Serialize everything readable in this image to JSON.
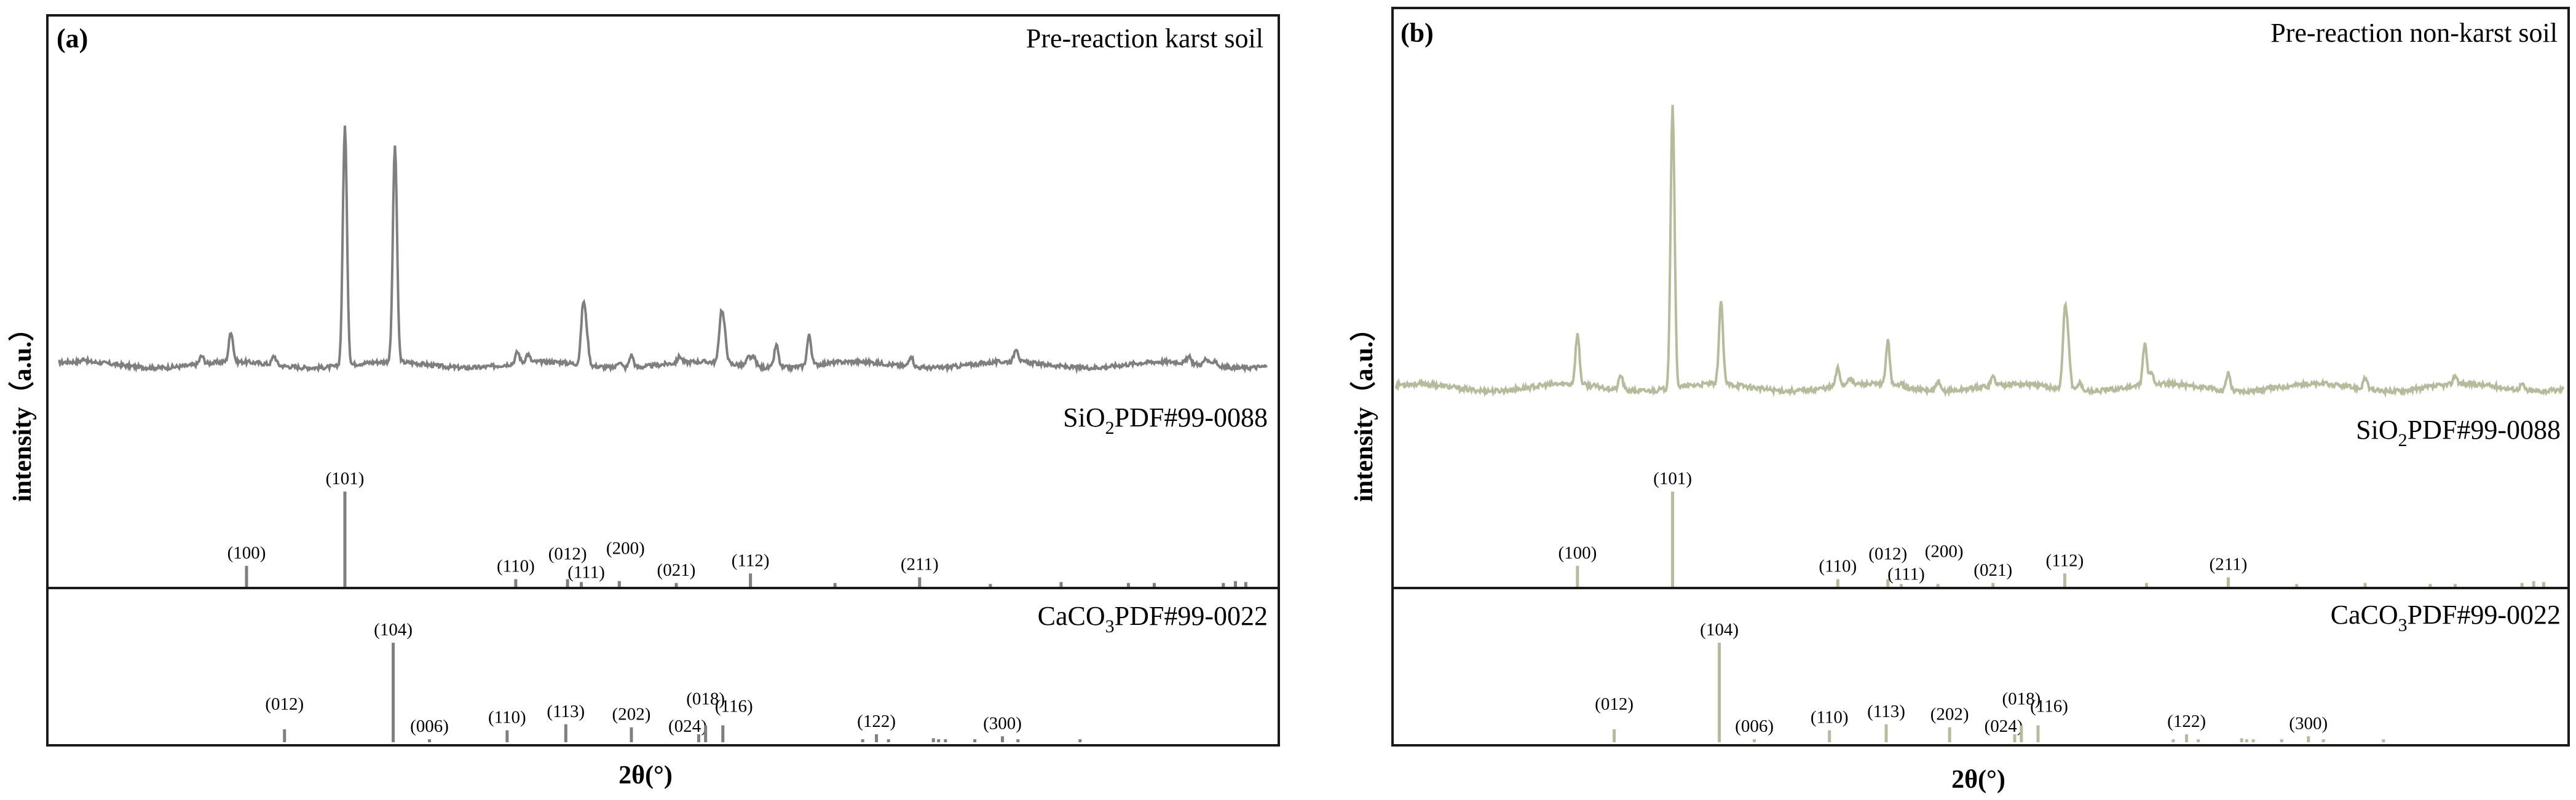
{
  "chart_data": [
    {
      "type": "line",
      "panel_label": "(a)",
      "title": "Pre-reaction karst soil",
      "xlabel": "2θ(°)",
      "ylabel": "intensity（a.u.）",
      "xlim": [
        10,
        80
      ],
      "ylim": [
        0,
        100
      ],
      "grid": false,
      "color": "#7f7f7f",
      "series": [
        {
          "name": "Pre-reaction karst soil",
          "baseline": 4,
          "peaks": [
            {
              "x": 11.5,
              "y": 1.2
            },
            {
              "x": 18.3,
              "y": 3.2
            },
            {
              "x": 20.0,
              "y": 12.0
            },
            {
              "x": 22.5,
              "y": 3.5
            },
            {
              "x": 26.6,
              "y": 95
            },
            {
              "x": 29.5,
              "y": 86
            },
            {
              "x": 36.6,
              "y": 4.5
            },
            {
              "x": 37.2,
              "y": 3.2
            },
            {
              "x": 40.4,
              "y": 22
            },
            {
              "x": 40.6,
              "y": 11
            },
            {
              "x": 42.5,
              "y": 2.5
            },
            {
              "x": 43.2,
              "y": 5.0
            },
            {
              "x": 46.0,
              "y": 2.5
            },
            {
              "x": 48.4,
              "y": 18
            },
            {
              "x": 48.6,
              "y": 10
            },
            {
              "x": 50.0,
              "y": 3.5
            },
            {
              "x": 50.3,
              "y": 3.5
            },
            {
              "x": 51.6,
              "y": 9.0
            },
            {
              "x": 53.5,
              "y": 12.0
            },
            {
              "x": 59.4,
              "y": 4.5
            },
            {
              "x": 65.5,
              "y": 5.5
            },
            {
              "x": 75.5,
              "y": 2.5
            },
            {
              "x": 76.5,
              "y": 2.5
            },
            {
              "x": 77.0,
              "y": 2.5
            }
          ]
        }
      ],
      "references": [
        {
          "name": "SiO2PDF#99-0088",
          "label_main": "SiO",
          "label_sub": "2",
          "label_rest": "PDF#99-0088",
          "sticks": [
            {
              "x": 20.9,
              "i": 22,
              "hkl": "(100)"
            },
            {
              "x": 26.6,
              "i": 100,
              "hkl": "(101)"
            },
            {
              "x": 36.5,
              "i": 8,
              "hkl": "(110)"
            },
            {
              "x": 39.5,
              "i": 8,
              "hkl": "(012)"
            },
            {
              "x": 40.3,
              "i": 5,
              "hkl": "(111)"
            },
            {
              "x": 42.5,
              "i": 6,
              "hkl": "(200)"
            },
            {
              "x": 45.8,
              "i": 4,
              "hkl": "(021)"
            },
            {
              "x": 50.1,
              "i": 14,
              "hkl": "(112)"
            },
            {
              "x": 55.0,
              "i": 4,
              "hkl": ""
            },
            {
              "x": 59.9,
              "i": 10,
              "hkl": "(211)"
            },
            {
              "x": 64.0,
              "i": 3,
              "hkl": ""
            },
            {
              "x": 68.1,
              "i": 5,
              "hkl": ""
            },
            {
              "x": 72.0,
              "i": 4,
              "hkl": ""
            },
            {
              "x": 73.5,
              "i": 4,
              "hkl": ""
            },
            {
              "x": 77.5,
              "i": 4,
              "hkl": ""
            },
            {
              "x": 78.2,
              "i": 6,
              "hkl": ""
            },
            {
              "x": 78.8,
              "i": 5,
              "hkl": ""
            }
          ]
        },
        {
          "name": "CaCO3PDF#99-0022",
          "label_main": "CaCO",
          "label_sub": "3",
          "label_rest": "PDF#99-0022",
          "sticks": [
            {
              "x": 23.1,
              "i": 13,
              "hkl": "(012)"
            },
            {
              "x": 29.4,
              "i": 100,
              "hkl": "(104)"
            },
            {
              "x": 31.5,
              "i": 3,
              "hkl": "(006)"
            },
            {
              "x": 36.0,
              "i": 12,
              "hkl": "(110)"
            },
            {
              "x": 39.4,
              "i": 18,
              "hkl": "(113)"
            },
            {
              "x": 43.2,
              "i": 15,
              "hkl": "(202)"
            },
            {
              "x": 47.1,
              "i": 8,
              "hkl": "(024)"
            },
            {
              "x": 47.5,
              "i": 17,
              "hkl": "(018)"
            },
            {
              "x": 48.5,
              "i": 17,
              "hkl": "(116)"
            },
            {
              "x": 56.6,
              "i": 3,
              "hkl": ""
            },
            {
              "x": 57.4,
              "i": 8,
              "hkl": "(122)"
            },
            {
              "x": 58.1,
              "i": 3,
              "hkl": ""
            },
            {
              "x": 60.7,
              "i": 4,
              "hkl": ""
            },
            {
              "x": 61.0,
              "i": 3,
              "hkl": ""
            },
            {
              "x": 61.4,
              "i": 3,
              "hkl": ""
            },
            {
              "x": 63.1,
              "i": 3,
              "hkl": ""
            },
            {
              "x": 64.7,
              "i": 6,
              "hkl": "(300)"
            },
            {
              "x": 65.6,
              "i": 3,
              "hkl": ""
            },
            {
              "x": 69.2,
              "i": 3,
              "hkl": ""
            }
          ]
        }
      ]
    },
    {
      "type": "line",
      "panel_label": "(b)",
      "title": "Pre-reaction non-karst soil",
      "xlabel": "2θ(°)",
      "ylabel": "intensity（a.u.）",
      "xlim": [
        10,
        80
      ],
      "ylim": [
        0,
        100
      ],
      "grid": false,
      "color": "#b5bc9b",
      "series": [
        {
          "name": "Pre-reaction non-karst soil",
          "baseline": 3,
          "peaks": [
            {
              "x": 20.9,
              "y": 17
            },
            {
              "x": 23.5,
              "y": 5
            },
            {
              "x": 26.6,
              "y": 96
            },
            {
              "x": 29.5,
              "y": 28
            },
            {
              "x": 36.5,
              "y": 6
            },
            {
              "x": 37.2,
              "y": 2.5
            },
            {
              "x": 39.5,
              "y": 15
            },
            {
              "x": 40.3,
              "y": 2
            },
            {
              "x": 42.5,
              "y": 3
            },
            {
              "x": 45.8,
              "y": 3
            },
            {
              "x": 50.1,
              "y": 24
            },
            {
              "x": 50.3,
              "y": 14
            },
            {
              "x": 51.0,
              "y": 3
            },
            {
              "x": 54.9,
              "y": 14
            },
            {
              "x": 55.3,
              "y": 4
            },
            {
              "x": 59.9,
              "y": 6
            },
            {
              "x": 68.1,
              "y": 4
            },
            {
              "x": 73.5,
              "y": 3
            },
            {
              "x": 77.5,
              "y": 2
            }
          ]
        }
      ],
      "references": [
        {
          "name": "SiO2PDF#99-0088",
          "label_main": "SiO",
          "label_sub": "2",
          "label_rest": "PDF#99-0088",
          "sticks": [
            {
              "x": 20.9,
              "i": 22,
              "hkl": "(100)"
            },
            {
              "x": 26.6,
              "i": 100,
              "hkl": "(101)"
            },
            {
              "x": 36.5,
              "i": 8,
              "hkl": "(110)"
            },
            {
              "x": 39.5,
              "i": 8,
              "hkl": "(012)"
            },
            {
              "x": 40.3,
              "i": 3,
              "hkl": "(111)"
            },
            {
              "x": 42.5,
              "i": 3,
              "hkl": "(200)"
            },
            {
              "x": 45.8,
              "i": 4,
              "hkl": "(021)"
            },
            {
              "x": 50.1,
              "i": 14,
              "hkl": "(112)"
            },
            {
              "x": 55.0,
              "i": 4,
              "hkl": ""
            },
            {
              "x": 59.9,
              "i": 10,
              "hkl": "(211)"
            },
            {
              "x": 64.0,
              "i": 3,
              "hkl": ""
            },
            {
              "x": 68.1,
              "i": 4,
              "hkl": ""
            },
            {
              "x": 72.0,
              "i": 3,
              "hkl": ""
            },
            {
              "x": 73.5,
              "i": 3,
              "hkl": ""
            },
            {
              "x": 77.5,
              "i": 4,
              "hkl": ""
            },
            {
              "x": 78.2,
              "i": 6,
              "hkl": ""
            },
            {
              "x": 78.8,
              "i": 5,
              "hkl": ""
            }
          ]
        },
        {
          "name": "CaCO3PDF#99-0022",
          "label_main": "CaCO",
          "label_sub": "3",
          "label_rest": "PDF#99-0022",
          "sticks": [
            {
              "x": 23.1,
              "i": 13,
              "hkl": "(012)"
            },
            {
              "x": 29.4,
              "i": 100,
              "hkl": "(104)"
            },
            {
              "x": 31.5,
              "i": 3,
              "hkl": "(006)"
            },
            {
              "x": 36.0,
              "i": 12,
              "hkl": "(110)"
            },
            {
              "x": 39.4,
              "i": 18,
              "hkl": "(113)"
            },
            {
              "x": 43.2,
              "i": 15,
              "hkl": "(202)"
            },
            {
              "x": 47.1,
              "i": 8,
              "hkl": "(024)"
            },
            {
              "x": 47.5,
              "i": 17,
              "hkl": "(018)"
            },
            {
              "x": 48.5,
              "i": 17,
              "hkl": "(116)"
            },
            {
              "x": 56.6,
              "i": 3,
              "hkl": ""
            },
            {
              "x": 57.4,
              "i": 8,
              "hkl": "(122)"
            },
            {
              "x": 58.1,
              "i": 3,
              "hkl": ""
            },
            {
              "x": 60.7,
              "i": 4,
              "hkl": ""
            },
            {
              "x": 61.0,
              "i": 3,
              "hkl": ""
            },
            {
              "x": 61.4,
              "i": 3,
              "hkl": ""
            },
            {
              "x": 63.1,
              "i": 3,
              "hkl": ""
            },
            {
              "x": 64.7,
              "i": 6,
              "hkl": "(300)"
            },
            {
              "x": 65.6,
              "i": 3,
              "hkl": ""
            },
            {
              "x": 69.2,
              "i": 3,
              "hkl": ""
            }
          ]
        }
      ]
    }
  ]
}
